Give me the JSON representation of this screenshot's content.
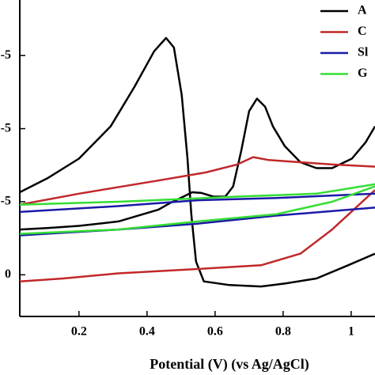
{
  "chart_data": {
    "type": "line",
    "x_label": "Potential (V) (vs Ag/AgCl)",
    "xlim": [
      0.026,
      1.07
    ],
    "xticks": [
      0.2,
      0.4,
      0.6,
      0.8,
      1.0
    ],
    "ylim": [
      -5.7e-06,
      3.76e-05
    ],
    "yticks": [
      0,
      {
        "value": 1e-05,
        "label": "-5"
      },
      {
        "value": 2e-05,
        "label": "-5"
      },
      {
        "value": 3e-05,
        "label": "-5"
      }
    ],
    "legend": "upper right",
    "series": [
      {
        "name": "A",
        "color": "#000000",
        "x": [
          0.026,
          0.107,
          0.2,
          0.293,
          0.363,
          0.421,
          0.456,
          0.479,
          0.502,
          0.519,
          0.53,
          0.544,
          0.567,
          0.642,
          0.735,
          0.805,
          0.898,
          0.991,
          1.07,
          null,
          1.07,
          1.042,
          1.002,
          0.944,
          0.898,
          0.851,
          0.805,
          0.77,
          0.747,
          0.723,
          0.7,
          0.677,
          0.653,
          0.63,
          0.595,
          0.56,
          0.533,
          0.507,
          0.467,
          0.433,
          0.316,
          0.2,
          0.107,
          0.026
        ],
        "values": [
          1.13e-05,
          1.32e-05,
          1.59e-05,
          2.03e-05,
          2.57e-05,
          3.06e-05,
          3.24e-05,
          3.11e-05,
          2.46e-05,
          1.59e-05,
          8.3e-06,
          1.8e-06,
          -9e-07,
          -1.4e-06,
          -1.6e-06,
          -1.2e-06,
          -5e-07,
          1.3e-06,
          2.9e-06,
          null,
          2.03e-05,
          1.81e-05,
          1.59e-05,
          1.46e-05,
          1.46e-05,
          1.54e-05,
          1.76e-05,
          2.03e-05,
          2.3e-05,
          2.41e-05,
          2.24e-05,
          1.7e-05,
          1.21e-05,
          1.07e-05,
          1.07e-05,
          1.12e-05,
          1.13e-05,
          1.07e-05,
          9.8e-06,
          8.9e-06,
          7.3e-06,
          6.7e-06,
          6.4e-06,
          6.2e-06
        ]
      },
      {
        "name": "C",
        "color": "#c0282a",
        "x": [
          0.026,
          0.2,
          0.433,
          0.572,
          0.665,
          0.712,
          0.758,
          0.851,
          0.944,
          1.07,
          null,
          1.07,
          0.944,
          0.851,
          0.735,
          0.549,
          0.316,
          0.153,
          0.026
        ],
        "values": [
          9.6e-06,
          1.11e-05,
          1.29e-05,
          1.4e-05,
          1.51e-05,
          1.61e-05,
          1.57e-05,
          1.54e-05,
          1.51e-05,
          1.48e-05,
          null,
          1.16e-05,
          6.2e-06,
          2.9e-06,
          1.3e-06,
          8e-07,
          2e-07,
          -5e-07,
          -9e-07
        ]
      },
      {
        "name": "Sl",
        "color": "#1a1aa6",
        "x": [
          0.026,
          0.316,
          0.549,
          0.781,
          1.07,
          null,
          1.07,
          0.781,
          0.549,
          0.316,
          0.026
        ],
        "values": [
          8.6e-06,
          9.4e-06,
          1.02e-05,
          1.05e-05,
          1.11e-05,
          null,
          9.2e-06,
          8.1e-06,
          7e-06,
          6.2e-06,
          5.4e-06
        ]
      },
      {
        "name": "G",
        "color": "#33dd33",
        "x": [
          0.026,
          0.316,
          0.665,
          0.898,
          1.07,
          null,
          1.07,
          0.944,
          0.781,
          0.549,
          0.316,
          0.026
        ],
        "values": [
          9.6e-06,
          1e-05,
          1.07e-05,
          1.11e-05,
          1.24e-05,
          null,
          1.21e-05,
          1e-05,
          8.3e-06,
          7.3e-06,
          6.2e-06,
          5.6e-06
        ]
      }
    ]
  }
}
